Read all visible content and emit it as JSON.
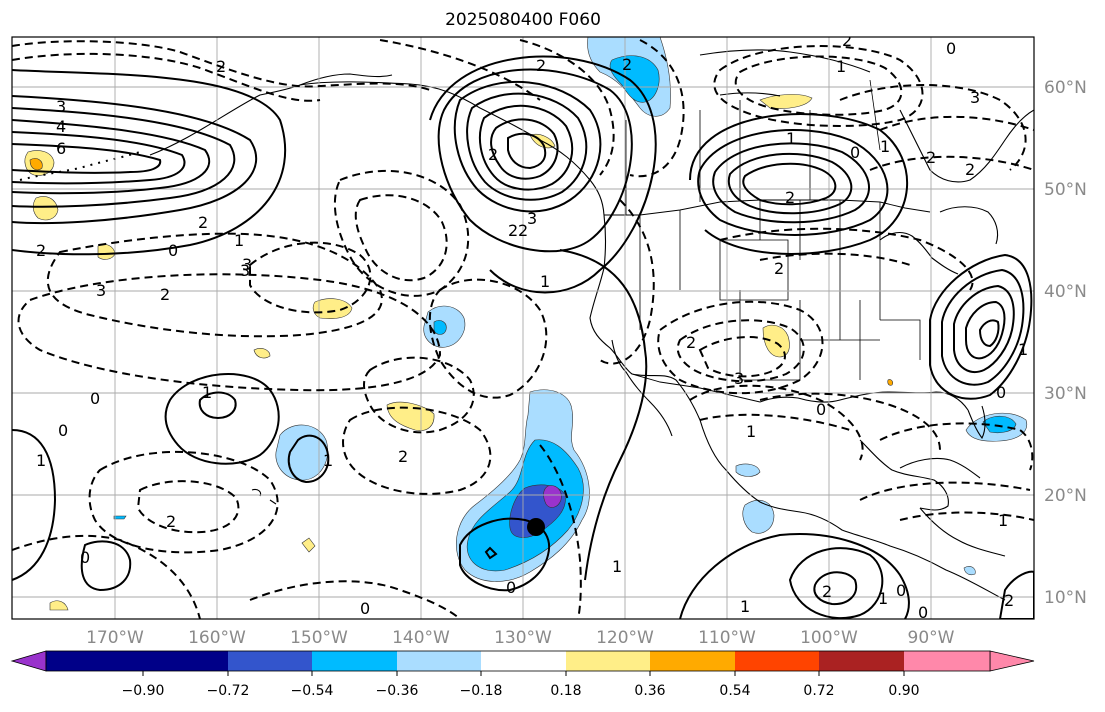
{
  "title": "2025080400 F060",
  "lon_labels": [
    "170°W",
    "160°W",
    "150°W",
    "140°W",
    "130°W",
    "120°W",
    "110°W",
    "100°W",
    "90°W"
  ],
  "lat_labels": [
    "60°N",
    "50°N",
    "40°N",
    "30°N",
    "20°N",
    "10°N"
  ],
  "colorbar": {
    "colors": [
      "#9933cc",
      "#000088",
      "#3355cc",
      "#00bbff",
      "#aaddff",
      "#ffffff",
      "#ffee88",
      "#ffaa00",
      "#ff4400",
      "#aa2222",
      "#ff88aa"
    ],
    "tick_labels": [
      "−0.90",
      "−0.72",
      "−0.54",
      "−0.36",
      "−0.18",
      "0.18",
      "0.36",
      "0.54",
      "0.72",
      "0.90"
    ]
  },
  "contour_labels": [
    "3",
    "4",
    "6",
    "2",
    "0",
    "2",
    "3",
    "1",
    "3",
    "0",
    "2",
    "2",
    "1",
    "3",
    "2",
    "2",
    "2",
    "1",
    "2",
    "3",
    "0",
    "2",
    "1",
    "1",
    "2",
    "2",
    "1",
    "0",
    "0",
    "2",
    "0",
    "1",
    "1",
    "0",
    "2",
    "1",
    "0",
    "2",
    "0",
    "0",
    "3",
    "1",
    "2",
    "1",
    "2",
    "1",
    "1",
    "0",
    "3",
    "2",
    "1",
    "0",
    "2",
    "2"
  ],
  "marker": "storm-center"
}
